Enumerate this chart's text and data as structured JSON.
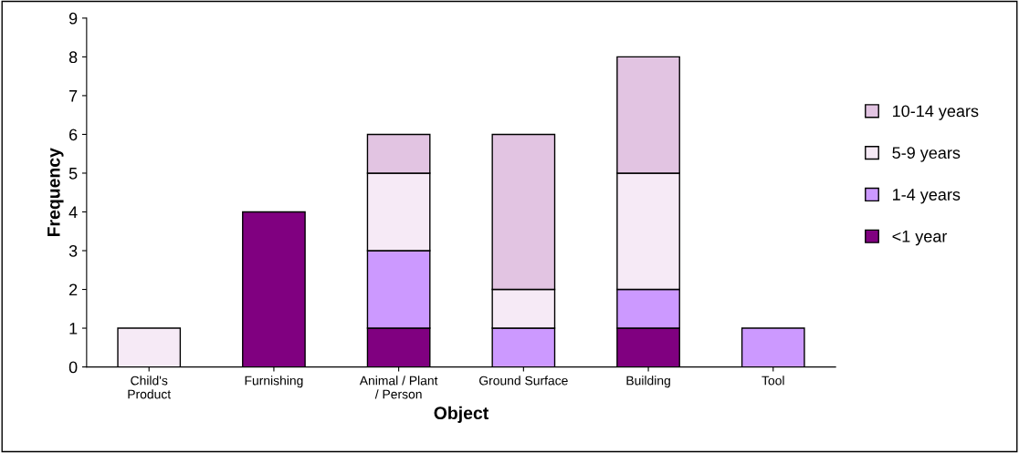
{
  "chart_data": {
    "type": "bar",
    "stacked": true,
    "xlabel": "Object",
    "ylabel": "Frequency",
    "categories": [
      "Child's Product",
      "Furnishing",
      "Animal / Plant / Person",
      "Ground Surface",
      "Building",
      "Tool"
    ],
    "series": [
      {
        "name": "<1 year",
        "color": "#800080",
        "values": [
          null,
          4,
          1,
          null,
          1,
          null
        ]
      },
      {
        "name": "1-4 years",
        "color": "#cc99ff",
        "values": [
          null,
          null,
          2,
          1,
          1,
          1
        ]
      },
      {
        "name": "5-9 years",
        "color": "#f6eaf6",
        "values": [
          1,
          null,
          2,
          1,
          3,
          null
        ]
      },
      {
        "name": "10-14 years",
        "color": "#e2c4e2",
        "values": [
          null,
          null,
          1,
          4,
          3,
          null
        ]
      }
    ],
    "ylim": [
      0,
      9
    ],
    "yticks": [
      0,
      1,
      2,
      3,
      4,
      5,
      6,
      7,
      8,
      9
    ],
    "grid": false,
    "legend": "right"
  }
}
